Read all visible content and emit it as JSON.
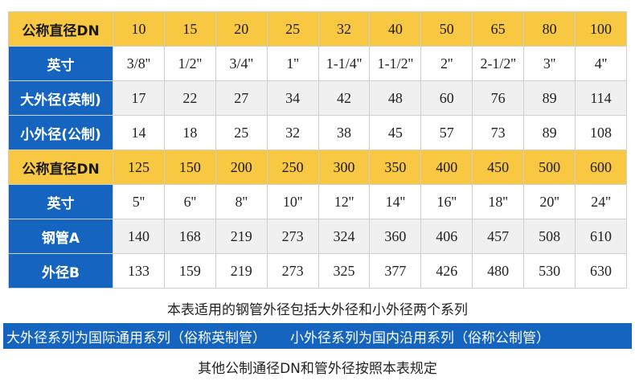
{
  "table": {
    "rows": [
      [
        "公称直径DN",
        "10",
        "15",
        "20",
        "25",
        "32",
        "40",
        "50",
        "65",
        "80",
        "100"
      ],
      [
        "英寸",
        "3/8''",
        "1/2''",
        "3/4''",
        "1''",
        "1-1/4''",
        "1-1/2''",
        "2''",
        "2-1/2''",
        "3''",
        "4''"
      ],
      [
        "大外径(英制)",
        "17",
        "22",
        "27",
        "34",
        "42",
        "48",
        "60",
        "76",
        "89",
        "114"
      ],
      [
        "小外径(公制)",
        "14",
        "18",
        "25",
        "32",
        "38",
        "45",
        "57",
        "73",
        "89",
        "108"
      ],
      [
        "公称直径DN",
        "125",
        "150",
        "200",
        "250",
        "300",
        "350",
        "400",
        "450",
        "500",
        "600"
      ],
      [
        "英寸",
        "5''",
        "6''",
        "8''",
        "10''",
        "12''",
        "14''",
        "16''",
        "18''",
        "20''",
        "24''"
      ],
      [
        "钢管A",
        "140",
        "168",
        "219",
        "273",
        "324",
        "360",
        "406",
        "457",
        "508",
        "610"
      ],
      [
        "外径B",
        "133",
        "159",
        "219",
        "273",
        "325",
        "377",
        "426",
        "480",
        "530",
        "630"
      ]
    ]
  },
  "notes": {
    "top": "本表适用的钢管外径包括大外径和小外径两个系列",
    "banner_left": "大外径系列为国际通用系列（俗称英制管）",
    "banner_right": "小外径系列为国内沿用系列（俗称公制管）",
    "bottom": "其他公制通径DN和管外径按照本表规定"
  }
}
